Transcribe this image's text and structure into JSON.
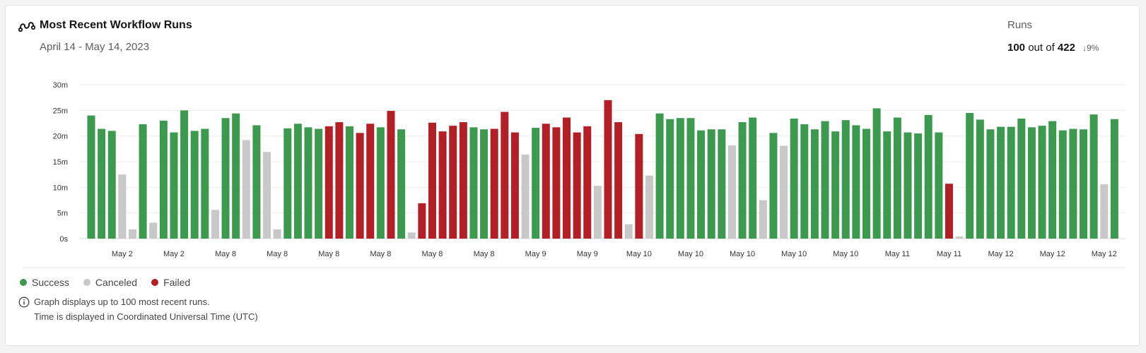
{
  "header": {
    "title": "Most Recent Workflow Runs",
    "date_range": "April 14 - May 14, 2023",
    "runs_label": "Runs",
    "runs_count": "100",
    "runs_out_of_text": "out of",
    "runs_total": "422",
    "trend_percent": "9%",
    "trend_direction": "down",
    "title_icon": "workflow-icon"
  },
  "legend": [
    {
      "label": "Success",
      "status": "success"
    },
    {
      "label": "Canceled",
      "status": "canceled"
    },
    {
      "label": "Failed",
      "status": "failed"
    }
  ],
  "footnotes": {
    "line1": "Graph displays up to 100 most recent runs.",
    "line2": "Time is displayed in Coordinated Universal Time (UTC)",
    "icon": "info-icon"
  },
  "colors": {
    "success": "#3c9a4f",
    "canceled": "#c8c8c8",
    "failed": "#b21f24",
    "gridline": "#ececec",
    "baseline": "#dddddd"
  },
  "chart_data": {
    "type": "bar",
    "ylim": [
      0,
      30
    ],
    "yticks": [
      {
        "value": 0,
        "label": "0s"
      },
      {
        "value": 5,
        "label": "5m"
      },
      {
        "value": 10,
        "label": "10m"
      },
      {
        "value": 15,
        "label": "15m"
      },
      {
        "value": 20,
        "label": "20m"
      },
      {
        "value": 25,
        "label": "25m"
      },
      {
        "value": 30,
        "label": "30m"
      }
    ],
    "grid": true,
    "legend_position": "bottom-left",
    "x_tick_labels": [
      {
        "bar_index": 3,
        "label": "May 2"
      },
      {
        "bar_index": 8,
        "label": "May 2"
      },
      {
        "bar_index": 13,
        "label": "May 8"
      },
      {
        "bar_index": 18,
        "label": "May 8"
      },
      {
        "bar_index": 23,
        "label": "May 8"
      },
      {
        "bar_index": 28,
        "label": "May 8"
      },
      {
        "bar_index": 33,
        "label": "May 8"
      },
      {
        "bar_index": 38,
        "label": "May 8"
      },
      {
        "bar_index": 43,
        "label": "May 9"
      },
      {
        "bar_index": 48,
        "label": "May 9"
      },
      {
        "bar_index": 53,
        "label": "May 10"
      },
      {
        "bar_index": 58,
        "label": "May 10"
      },
      {
        "bar_index": 63,
        "label": "May 10"
      },
      {
        "bar_index": 68,
        "label": "May 10"
      },
      {
        "bar_index": 73,
        "label": "May 10"
      },
      {
        "bar_index": 78,
        "label": "May 11"
      },
      {
        "bar_index": 83,
        "label": "May 11"
      },
      {
        "bar_index": 88,
        "label": "May 12"
      },
      {
        "bar_index": 93,
        "label": "May 12"
      },
      {
        "bar_index": 98,
        "label": "May 12"
      }
    ],
    "bars": [
      {
        "status": "success",
        "value": 24.0
      },
      {
        "status": "success",
        "value": 21.4
      },
      {
        "status": "success",
        "value": 21.0
      },
      {
        "status": "canceled",
        "value": 12.5
      },
      {
        "status": "canceled",
        "value": 1.8
      },
      {
        "status": "success",
        "value": 22.3
      },
      {
        "status": "canceled",
        "value": 3.1
      },
      {
        "status": "success",
        "value": 23.0
      },
      {
        "status": "success",
        "value": 20.7
      },
      {
        "status": "success",
        "value": 25.0
      },
      {
        "status": "success",
        "value": 21.0
      },
      {
        "status": "success",
        "value": 21.4
      },
      {
        "status": "canceled",
        "value": 5.6
      },
      {
        "status": "success",
        "value": 23.5
      },
      {
        "status": "success",
        "value": 24.4
      },
      {
        "status": "canceled",
        "value": 19.2
      },
      {
        "status": "success",
        "value": 22.1
      },
      {
        "status": "canceled",
        "value": 16.9
      },
      {
        "status": "canceled",
        "value": 1.8
      },
      {
        "status": "success",
        "value": 21.5
      },
      {
        "status": "success",
        "value": 22.4
      },
      {
        "status": "success",
        "value": 21.7
      },
      {
        "status": "success",
        "value": 21.4
      },
      {
        "status": "failed",
        "value": 21.9
      },
      {
        "status": "failed",
        "value": 22.7
      },
      {
        "status": "success",
        "value": 21.9
      },
      {
        "status": "failed",
        "value": 20.6
      },
      {
        "status": "failed",
        "value": 22.4
      },
      {
        "status": "success",
        "value": 21.7
      },
      {
        "status": "failed",
        "value": 24.9
      },
      {
        "status": "success",
        "value": 21.3
      },
      {
        "status": "canceled",
        "value": 1.2
      },
      {
        "status": "failed",
        "value": 6.9
      },
      {
        "status": "failed",
        "value": 22.6
      },
      {
        "status": "failed",
        "value": 20.9
      },
      {
        "status": "failed",
        "value": 22.0
      },
      {
        "status": "failed",
        "value": 22.7
      },
      {
        "status": "success",
        "value": 21.7
      },
      {
        "status": "success",
        "value": 21.3
      },
      {
        "status": "failed",
        "value": 21.4
      },
      {
        "status": "failed",
        "value": 24.7
      },
      {
        "status": "failed",
        "value": 20.7
      },
      {
        "status": "canceled",
        "value": 16.4
      },
      {
        "status": "success",
        "value": 21.6
      },
      {
        "status": "failed",
        "value": 22.4
      },
      {
        "status": "failed",
        "value": 21.7
      },
      {
        "status": "failed",
        "value": 23.6
      },
      {
        "status": "failed",
        "value": 20.7
      },
      {
        "status": "failed",
        "value": 21.9
      },
      {
        "status": "canceled",
        "value": 10.3
      },
      {
        "status": "failed",
        "value": 27.0
      },
      {
        "status": "failed",
        "value": 22.7
      },
      {
        "status": "canceled",
        "value": 2.8
      },
      {
        "status": "failed",
        "value": 20.4
      },
      {
        "status": "canceled",
        "value": 12.3
      },
      {
        "status": "success",
        "value": 24.4
      },
      {
        "status": "success",
        "value": 23.3
      },
      {
        "status": "success",
        "value": 23.5
      },
      {
        "status": "success",
        "value": 23.5
      },
      {
        "status": "success",
        "value": 21.1
      },
      {
        "status": "success",
        "value": 21.3
      },
      {
        "status": "success",
        "value": 21.3
      },
      {
        "status": "canceled",
        "value": 18.2
      },
      {
        "status": "success",
        "value": 22.7
      },
      {
        "status": "success",
        "value": 23.6
      },
      {
        "status": "canceled",
        "value": 7.5
      },
      {
        "status": "success",
        "value": 20.6
      },
      {
        "status": "canceled",
        "value": 18.1
      },
      {
        "status": "success",
        "value": 23.4
      },
      {
        "status": "success",
        "value": 22.3
      },
      {
        "status": "success",
        "value": 21.3
      },
      {
        "status": "success",
        "value": 22.9
      },
      {
        "status": "success",
        "value": 20.9
      },
      {
        "status": "success",
        "value": 23.1
      },
      {
        "status": "success",
        "value": 22.1
      },
      {
        "status": "success",
        "value": 21.4
      },
      {
        "status": "success",
        "value": 25.4
      },
      {
        "status": "success",
        "value": 20.9
      },
      {
        "status": "success",
        "value": 23.6
      },
      {
        "status": "success",
        "value": 20.7
      },
      {
        "status": "success",
        "value": 20.5
      },
      {
        "status": "success",
        "value": 24.1
      },
      {
        "status": "success",
        "value": 20.7
      },
      {
        "status": "failed",
        "value": 10.7
      },
      {
        "status": "canceled",
        "value": 0.4
      },
      {
        "status": "success",
        "value": 24.5
      },
      {
        "status": "success",
        "value": 23.2
      },
      {
        "status": "success",
        "value": 21.3
      },
      {
        "status": "success",
        "value": 21.8
      },
      {
        "status": "success",
        "value": 21.8
      },
      {
        "status": "success",
        "value": 23.4
      },
      {
        "status": "success",
        "value": 21.7
      },
      {
        "status": "success",
        "value": 22.0
      },
      {
        "status": "success",
        "value": 22.9
      },
      {
        "status": "success",
        "value": 21.1
      },
      {
        "status": "success",
        "value": 21.4
      },
      {
        "status": "success",
        "value": 21.3
      },
      {
        "status": "success",
        "value": 24.2
      },
      {
        "status": "canceled",
        "value": 10.6
      },
      {
        "status": "success",
        "value": 23.3
      }
    ]
  }
}
